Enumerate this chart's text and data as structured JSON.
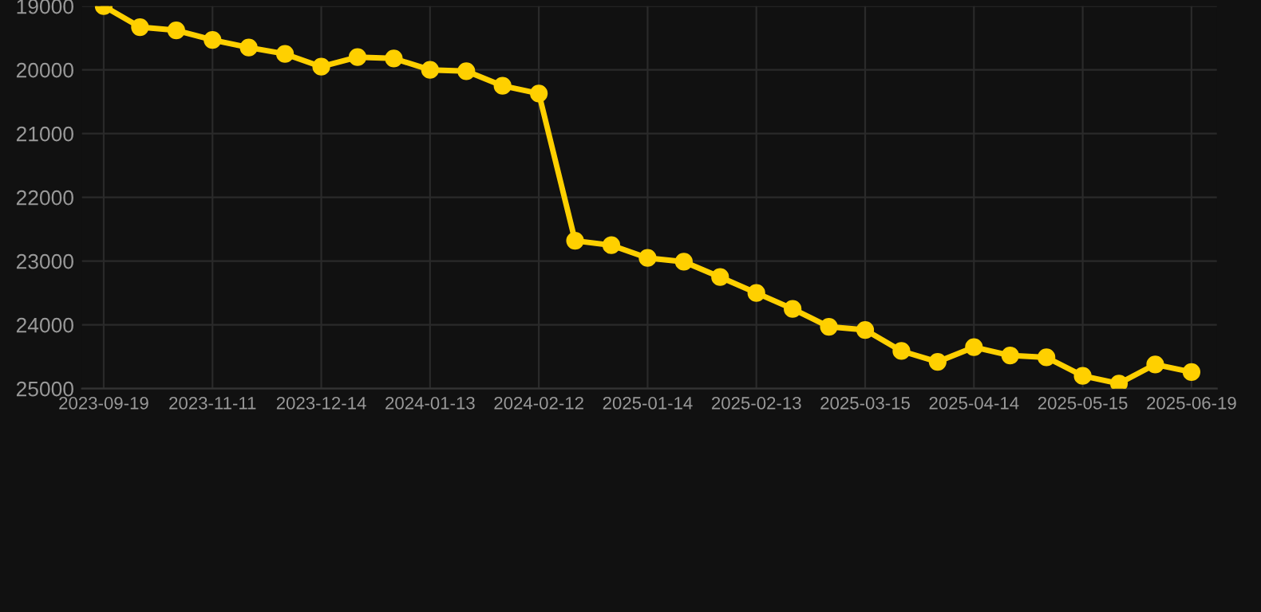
{
  "chart_data": {
    "type": "line",
    "categories": [
      "2023-09-19",
      null,
      null,
      "2023-11-11",
      null,
      null,
      "2023-12-14",
      null,
      null,
      "2024-01-13",
      null,
      null,
      "2024-02-12",
      null,
      null,
      "2025-01-14",
      null,
      null,
      "2025-02-13",
      null,
      null,
      "2025-03-15",
      null,
      null,
      "2025-04-14",
      null,
      null,
      "2025-05-15",
      null,
      null,
      "2025-06-19"
    ],
    "series": [
      {
        "color": "#ffd000",
        "values": [
          19000,
          19330,
          19380,
          19530,
          19650,
          19750,
          19950,
          19800,
          19820,
          20000,
          20020,
          20250,
          20370,
          22680,
          22750,
          22950,
          23010,
          23250,
          23500,
          23750,
          24030,
          24080,
          24410,
          24580,
          24350,
          24480,
          24510,
          24800,
          24920,
          24620,
          24740
        ]
      }
    ],
    "ylim": [
      25000,
      19000
    ],
    "yticks": [
      19000,
      20000,
      21000,
      22000,
      23000,
      24000,
      25000
    ],
    "grid": true,
    "marker": "circle",
    "line_style": "solid"
  }
}
